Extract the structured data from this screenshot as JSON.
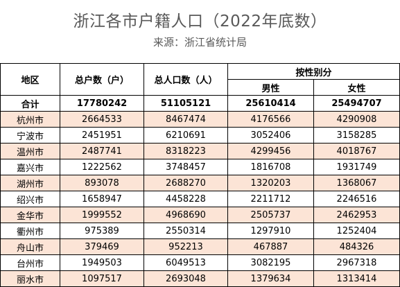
{
  "title": "浙江各市户籍人口（2022年底数）",
  "source": "来源：浙江省统计局",
  "headers": {
    "region": "地区",
    "households": "总户数（户）",
    "population": "总人口数（人）",
    "by_sex": "按性别分",
    "male": "男性",
    "female": "女性"
  },
  "total": {
    "name": "合计",
    "households": "17780242",
    "population": "51105121",
    "male": "25610414",
    "female": "25494707"
  },
  "rows": [
    {
      "name": "杭州市",
      "households": "2664533",
      "population": "8467474",
      "male": "4176566",
      "female": "4290908"
    },
    {
      "name": "宁波市",
      "households": "2451951",
      "population": "6210691",
      "male": "3052406",
      "female": "3158285"
    },
    {
      "name": "温州市",
      "households": "2487741",
      "population": "8318223",
      "male": "4299456",
      "female": "4018767"
    },
    {
      "name": "嘉兴市",
      "households": "1222562",
      "population": "3748457",
      "male": "1816708",
      "female": "1931749"
    },
    {
      "name": "湖州市",
      "households": "893078",
      "population": "2688270",
      "male": "1320203",
      "female": "1368067"
    },
    {
      "name": "绍兴市",
      "households": "1658947",
      "population": "4458228",
      "male": "2211712",
      "female": "2246516"
    },
    {
      "name": "金华市",
      "households": "1999552",
      "population": "4968690",
      "male": "2505737",
      "female": "2462953"
    },
    {
      "name": "衢州市",
      "households": "975389",
      "population": "2550314",
      "male": "1297910",
      "female": "1252404"
    },
    {
      "name": "舟山市",
      "households": "379469",
      "population": "952213",
      "male": "467887",
      "female": "484326"
    },
    {
      "name": "台州市",
      "households": "1949503",
      "population": "6049513",
      "male": "3082195",
      "female": "2967318"
    },
    {
      "name": "丽水市",
      "households": "1097517",
      "population": "2693048",
      "male": "1379634",
      "female": "1313414"
    }
  ],
  "colors": {
    "shaded_row": "#fce4d6",
    "plain_row": "#ffffff",
    "title_text": "#595959"
  }
}
